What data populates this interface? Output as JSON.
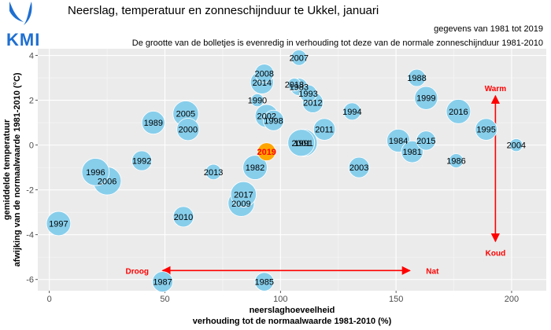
{
  "logo": {
    "text": "KMI"
  },
  "chart_data": {
    "type": "scatter",
    "title": "Neerslag, temperatuur en zonneschijnduur te Ukkel, januari",
    "subtitle": "gegevens van 1981 tot 2019",
    "note": "De grootte van de bolletjes is evenredig in verhouding tot deze van de normale zonneschijnduur 1981-2010",
    "xlabel": "neerslaghoeveelheid",
    "xlabel2": "verhouding tot de normaalwaarde 1981-2010 (%)",
    "ylabel": "gemiddelde temperatuur",
    "ylabel2": "afwijking van de normaalwaarde 1981-2010 (°C)",
    "xlim": [
      -5,
      215
    ],
    "ylim": [
      -6.5,
      4.3
    ],
    "xticks": [
      0,
      50,
      100,
      150,
      200
    ],
    "yticks": [
      -6,
      -4,
      -2,
      0,
      2,
      4
    ],
    "ytick_labels": [
      "-6",
      "-4",
      "-2",
      "0",
      "2",
      "4"
    ],
    "grid": true,
    "point_color": "#87ceeb",
    "highlight_color": "#ffa500",
    "arrow_color": "#ff0000",
    "annotations": {
      "warm": "Warm",
      "koud": "Koud",
      "droog": "Droog",
      "nat": "Nat"
    },
    "points": [
      {
        "label": "1981",
        "x": 157,
        "y": -0.3,
        "size": 1.1
      },
      {
        "label": "1982",
        "x": 89,
        "y": -1.0,
        "size": 1.3
      },
      {
        "label": "1983",
        "x": 108,
        "y": 2.6,
        "size": 0.75
      },
      {
        "label": "1984",
        "x": 151,
        "y": 0.2,
        "size": 1.2
      },
      {
        "label": "1985",
        "x": 93,
        "y": -6.1,
        "size": 0.85
      },
      {
        "label": "1986",
        "x": 176,
        "y": -0.7,
        "size": 0.5
      },
      {
        "label": "1987",
        "x": 49,
        "y": -6.1,
        "size": 1.0
      },
      {
        "label": "1988",
        "x": 159,
        "y": 3.0,
        "size": 0.75
      },
      {
        "label": "1989",
        "x": 45,
        "y": 1.0,
        "size": 1.2
      },
      {
        "label": "1990",
        "x": 90,
        "y": 2.0,
        "size": 0.4
      },
      {
        "label": "1991",
        "x": 110,
        "y": 0.1,
        "size": 1.55
      },
      {
        "label": "1992",
        "x": 40,
        "y": -0.7,
        "size": 0.95
      },
      {
        "label": "1993",
        "x": 112,
        "y": 2.3,
        "size": 0.75
      },
      {
        "label": "1994",
        "x": 131,
        "y": 1.5,
        "size": 0.75
      },
      {
        "label": "1995",
        "x": 189,
        "y": 0.7,
        "size": 1.1
      },
      {
        "label": "1996",
        "x": 20,
        "y": -1.2,
        "size": 1.55
      },
      {
        "label": "1997",
        "x": 4,
        "y": -3.5,
        "size": 1.3
      },
      {
        "label": "1998",
        "x": 97,
        "y": 1.1,
        "size": 1.0
      },
      {
        "label": "2000",
        "x": 60,
        "y": 0.7,
        "size": 1.15
      },
      {
        "label": "2001",
        "x": 109,
        "y": 0.1,
        "size": 1.5
      },
      {
        "label": "2002",
        "x": 94,
        "y": 1.3,
        "size": 1.2
      },
      {
        "label": "2003",
        "x": 134,
        "y": -1.0,
        "size": 1.0
      },
      {
        "label": "2004",
        "x": 202,
        "y": 0.0,
        "size": 0.4
      },
      {
        "label": "2005",
        "x": 59,
        "y": 1.4,
        "size": 1.4
      },
      {
        "label": "2006",
        "x": 25,
        "y": -1.6,
        "size": 1.6
      },
      {
        "label": "2007",
        "x": 108,
        "y": 3.9,
        "size": 0.6
      },
      {
        "label": "2008",
        "x": 93,
        "y": 3.2,
        "size": 0.85
      },
      {
        "label": "2009",
        "x": 83,
        "y": -2.6,
        "size": 1.45
      },
      {
        "label": "2010",
        "x": 58,
        "y": -3.2,
        "size": 1.0
      },
      {
        "label": "2011",
        "x": 119,
        "y": 0.7,
        "size": 1.1
      },
      {
        "label": "2012",
        "x": 114,
        "y": 1.9,
        "size": 1.0
      },
      {
        "label": "2013",
        "x": 71,
        "y": -1.2,
        "size": 0.6
      },
      {
        "label": "2014",
        "x": 92,
        "y": 2.8,
        "size": 1.2
      },
      {
        "label": "2015",
        "x": 163,
        "y": 0.2,
        "size": 0.9
      },
      {
        "label": "2016",
        "x": 177,
        "y": 1.5,
        "size": 1.3
      },
      {
        "label": "2017",
        "x": 84,
        "y": -2.2,
        "size": 1.4
      },
      {
        "label": "2018",
        "x": 106,
        "y": 2.7,
        "size": 0.4
      },
      {
        "label": "1999",
        "x": 163,
        "y": 2.1,
        "size": 1.2
      },
      {
        "label": "2019",
        "x": 94,
        "y": -0.3,
        "size": 0.8,
        "highlight": true
      }
    ]
  }
}
